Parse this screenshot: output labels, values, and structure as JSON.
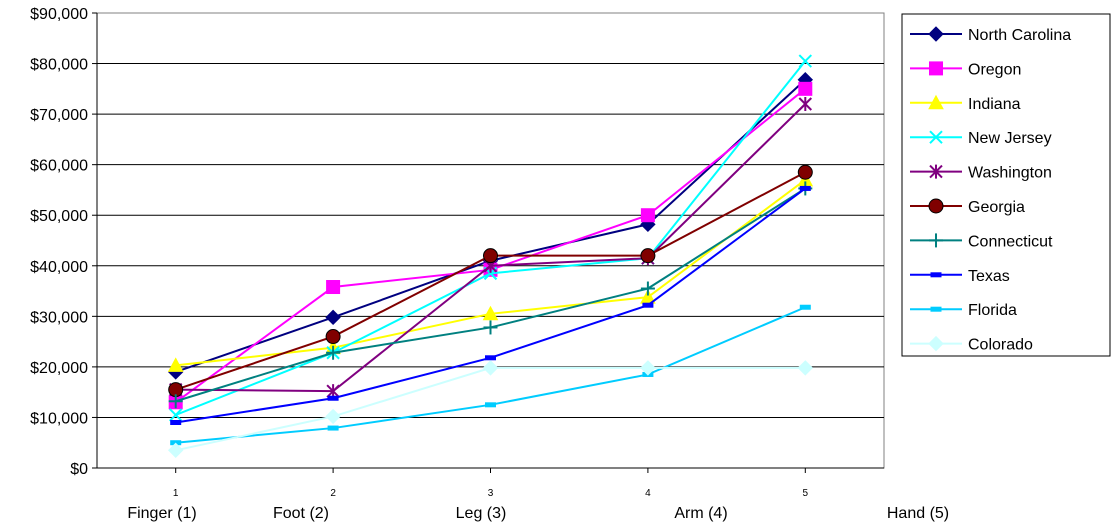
{
  "chart_data": {
    "type": "line",
    "title": "",
    "xlabel": "",
    "ylabel": "",
    "x_ticks": [
      "1",
      "2",
      "3",
      "4",
      "5"
    ],
    "categories": [
      "Finger (1)",
      "Foot (2)",
      "Leg (3)",
      "Arm (4)",
      "Hand (5)"
    ],
    "y_ticks": [
      "$0",
      "$10,000",
      "$20,000",
      "$30,000",
      "$40,000",
      "$50,000",
      "$60,000",
      "$70,000",
      "$80,000",
      "$90,000"
    ],
    "ylim": [
      0,
      90000
    ],
    "grid": "horizontal",
    "legend_position": "right",
    "series": [
      {
        "name": "North Carolina",
        "color": "#000080",
        "marker": "diamond",
        "values": [
          19000,
          29800,
          41000,
          48200,
          76800
        ]
      },
      {
        "name": "Oregon",
        "color": "#FF00FF",
        "marker": "square",
        "values": [
          13000,
          35800,
          39200,
          50000,
          75000
        ]
      },
      {
        "name": "Indiana",
        "color": "#FFFF00",
        "marker": "triangle",
        "values": [
          20300,
          23800,
          30500,
          33800,
          57000
        ]
      },
      {
        "name": "New Jersey",
        "color": "#00FFFF",
        "marker": "x",
        "values": [
          10500,
          22800,
          38500,
          41500,
          80500
        ]
      },
      {
        "name": "Washington",
        "color": "#800080",
        "marker": "star",
        "values": [
          15500,
          15200,
          40000,
          41500,
          72000
        ]
      },
      {
        "name": "Georgia",
        "color": "#800000",
        "marker": "circle",
        "values": [
          15500,
          26000,
          42000,
          42000,
          58500
        ]
      },
      {
        "name": "Connecticut",
        "color": "#008080",
        "marker": "plus",
        "values": [
          13200,
          22800,
          27800,
          35500,
          55300
        ]
      },
      {
        "name": "Texas",
        "color": "#0000FF",
        "marker": "dash",
        "values": [
          9000,
          13800,
          21800,
          32200,
          55300
        ]
      },
      {
        "name": "Florida",
        "color": "#00CCFF",
        "marker": "dash",
        "values": [
          5000,
          7900,
          12500,
          18500,
          31800
        ]
      },
      {
        "name": "Colorado",
        "color": "#CCFFFF",
        "marker": "diamond",
        "values": [
          3500,
          10200,
          19800,
          19800,
          19800
        ]
      }
    ]
  }
}
